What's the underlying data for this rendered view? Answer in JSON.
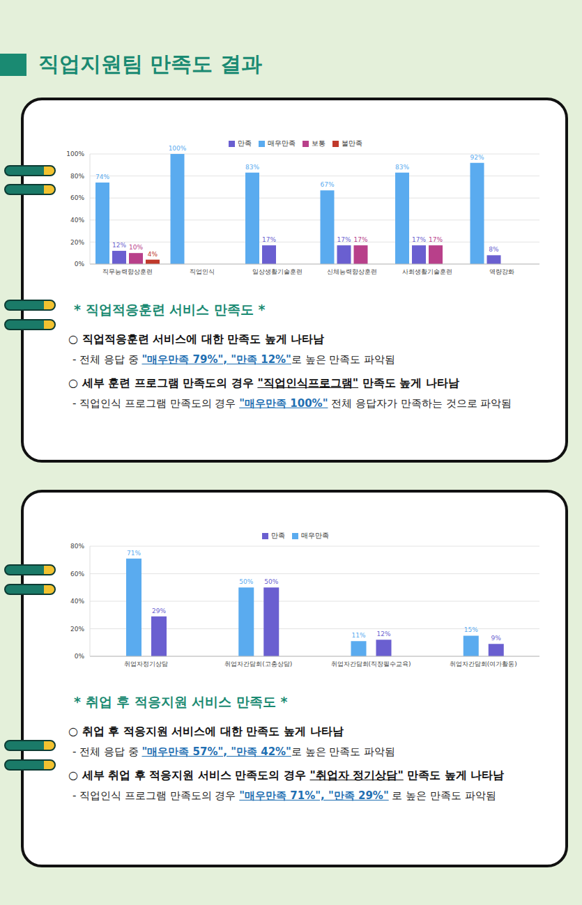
{
  "title": "직업지원팀 만족도 결과",
  "chart_data": [
    {
      "type": "bar",
      "title": "* 직업적응훈련 서비스 만족도 *",
      "categories": [
        "직무능력향상훈련",
        "직업인식",
        "일상생활기술훈련",
        "신체능력향상훈련",
        "사회생활기술훈련",
        "역량강화"
      ],
      "series": [
        {
          "name": "매우만족",
          "color": "#5aabef",
          "values": [
            74,
            100,
            83,
            67,
            83,
            92
          ],
          "value_labels": [
            "74%",
            "100%",
            "83%",
            "67%",
            "83%",
            "92%"
          ]
        },
        {
          "name": "만족",
          "color": "#6a5fd0",
          "values": [
            12,
            null,
            17,
            17,
            17,
            8
          ],
          "value_labels": [
            "12%",
            null,
            "17%",
            "17%",
            "17%",
            "8%"
          ]
        },
        {
          "name": "보통",
          "color": "#b8408a",
          "values": [
            10,
            null,
            null,
            17,
            17,
            null
          ],
          "value_labels": [
            "10%",
            null,
            null,
            "17%",
            "17%",
            null
          ]
        },
        {
          "name": "불만족",
          "color": "#c0392b",
          "values": [
            4,
            null,
            null,
            null,
            null,
            null
          ],
          "value_labels": [
            "4%",
            null,
            null,
            null,
            null,
            null
          ]
        }
      ],
      "ylim": [
        0,
        100
      ],
      "yticks": [
        {
          "value": 0,
          "label": "0%"
        },
        {
          "value": 20,
          "label": "20%"
        },
        {
          "value": 40,
          "label": "40%"
        },
        {
          "value": 60,
          "label": "60%"
        },
        {
          "value": 80,
          "label": "80%"
        },
        {
          "value": 100,
          "label": "100%"
        }
      ],
      "grid": true,
      "legend": "top",
      "data_labels": true,
      "annotations": [
        {
          "heading": [
            "○ 직업적응훈련 서비스에 대한 만족도 높게 나타남"
          ],
          "detail": [
            "- 전체 응답 중 ",
            "\"매우만족 79%\", \"만족 12%\"",
            "로 높은 만족도 파악됨"
          ]
        },
        {
          "heading": [
            "○ 세부 훈련 프로그램 만족도의 경우 ",
            "\"직업인식프로그램\"",
            " 만족도 높게 나타남"
          ],
          "detail": [
            "- 직업인식 프로그램 만족도의 경우 ",
            "\"매우만족 100%\"",
            " 전체 응답자가 만족하는 것으로 파악됨"
          ]
        }
      ]
    },
    {
      "type": "bar",
      "title": "* 취업 후 적응지원 서비스 만족도 *",
      "categories": [
        "취업자정기상담",
        "취업자간담회(고충상담)",
        "취업자간담회(직장필수교육)",
        "취업자간담회(여가활동)"
      ],
      "series": [
        {
          "name": "매우만족",
          "color": "#5aabef",
          "values": [
            71,
            50,
            11,
            15
          ],
          "value_labels": [
            "71%",
            "50%",
            "11%",
            "15%"
          ]
        },
        {
          "name": "만족",
          "color": "#6a5fd0",
          "values": [
            29,
            50,
            12,
            9
          ],
          "value_labels": [
            "29%",
            "50%",
            "12%",
            "9%"
          ]
        }
      ],
      "ylim": [
        0,
        80
      ],
      "yticks": [
        {
          "value": 0,
          "label": "0%"
        },
        {
          "value": 20,
          "label": "20%"
        },
        {
          "value": 40,
          "label": "40%"
        },
        {
          "value": 60,
          "label": "60%"
        },
        {
          "value": 80,
          "label": "80%"
        }
      ],
      "grid": true,
      "legend": "top",
      "data_labels": true,
      "annotations": [
        {
          "heading": [
            "○ 취업 후 적응지원 서비스에 대한 만족도 높게 나타남"
          ],
          "detail": [
            "- 전체 응답 중 ",
            "\"매우만족 57%\", \"만족 42%\"",
            "로 높은 만족도 파악됨"
          ]
        },
        {
          "heading": [
            "○ 세부 취업 후 적응지원 서비스 만족도의 경우 ",
            "\"취업자 정기상담\"",
            " 만족도 높게 나타남"
          ],
          "detail": [
            "- 직업인식 프로그램 만족도의 경우 ",
            "\"매우만족 71%\", \"만족 29%\"",
            " 로 높은 만족도 파악됨"
          ]
        }
      ]
    }
  ]
}
